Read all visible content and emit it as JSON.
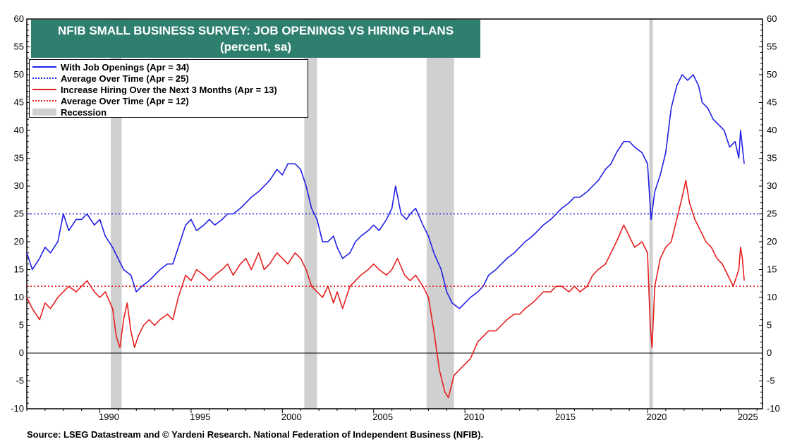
{
  "title": "NFIB SMALL BUSINESS SURVEY: JOB OPENINGS VS HIRING PLANS",
  "subtitle": "(percent, sa)",
  "source": "Source: LSEG Datastream and © Yardeni Research. National Federation of Independent Business (NFIB).",
  "legend": [
    {
      "label": "With Job Openings  (Apr = 34)",
      "style": "solid",
      "color": "#1f1fe6"
    },
    {
      "label": "Average Over Time (Apr = 25)",
      "style": "dotted",
      "color": "#1f1fe6"
    },
    {
      "label": "Increase Hiring Over the Next 3 Months (Apr = 13)",
      "style": "solid",
      "color": "#e61e1e"
    },
    {
      "label": "Average Over Time (Apr = 12)",
      "style": "dotted",
      "color": "#e61e1e"
    },
    {
      "label": "Recession",
      "style": "band",
      "color": "#d0d0d0"
    }
  ],
  "chart_data": {
    "type": "line",
    "xlim": [
      1986.0,
      2026.3
    ],
    "ylim": [
      -10,
      60
    ],
    "x_ticks": [
      "1990",
      "1995",
      "2000",
      "2005",
      "2010",
      "2015",
      "2020",
      "2025"
    ],
    "y_ticks": [
      "-10",
      "-5",
      "0",
      "5",
      "10",
      "15",
      "20",
      "25",
      "30",
      "35",
      "40",
      "45",
      "50",
      "55",
      "60"
    ],
    "grid": false,
    "legend_position": "top-left",
    "zero_line": true,
    "recessions": [
      [
        1990.6,
        1991.2
      ],
      [
        2001.2,
        2001.9
      ],
      [
        2007.9,
        2009.4
      ],
      [
        2020.1,
        2020.3
      ]
    ],
    "series": [
      {
        "name": "With Job Openings",
        "color": "#1f1fe6",
        "points": [
          [
            1986.0,
            18
          ],
          [
            1986.3,
            15
          ],
          [
            1986.7,
            17
          ],
          [
            1987.0,
            19
          ],
          [
            1987.3,
            18
          ],
          [
            1987.7,
            20
          ],
          [
            1988.0,
            25
          ],
          [
            1988.3,
            22
          ],
          [
            1988.7,
            24
          ],
          [
            1989.0,
            24
          ],
          [
            1989.3,
            25
          ],
          [
            1989.7,
            23
          ],
          [
            1990.0,
            24
          ],
          [
            1990.3,
            21
          ],
          [
            1990.7,
            19
          ],
          [
            1991.0,
            17
          ],
          [
            1991.3,
            15
          ],
          [
            1991.7,
            14
          ],
          [
            1992.0,
            11
          ],
          [
            1992.3,
            12
          ],
          [
            1992.7,
            13
          ],
          [
            1993.0,
            14
          ],
          [
            1993.3,
            15
          ],
          [
            1993.7,
            16
          ],
          [
            1994.0,
            16
          ],
          [
            1994.3,
            19
          ],
          [
            1994.7,
            23
          ],
          [
            1995.0,
            24
          ],
          [
            1995.3,
            22
          ],
          [
            1995.7,
            23
          ],
          [
            1996.0,
            24
          ],
          [
            1996.3,
            23
          ],
          [
            1996.7,
            24
          ],
          [
            1997.0,
            25
          ],
          [
            1997.3,
            25
          ],
          [
            1997.7,
            26
          ],
          [
            1998.0,
            27
          ],
          [
            1998.3,
            28
          ],
          [
            1998.7,
            29
          ],
          [
            1999.0,
            30
          ],
          [
            1999.3,
            31
          ],
          [
            1999.7,
            33
          ],
          [
            2000.0,
            32
          ],
          [
            2000.3,
            34
          ],
          [
            2000.7,
            34
          ],
          [
            2001.0,
            33
          ],
          [
            2001.3,
            30
          ],
          [
            2001.6,
            26
          ],
          [
            2001.9,
            24
          ],
          [
            2002.2,
            20
          ],
          [
            2002.5,
            20
          ],
          [
            2002.8,
            21
          ],
          [
            2003.0,
            19
          ],
          [
            2003.3,
            17
          ],
          [
            2003.7,
            18
          ],
          [
            2004.0,
            20
          ],
          [
            2004.3,
            21
          ],
          [
            2004.7,
            22
          ],
          [
            2005.0,
            23
          ],
          [
            2005.3,
            22
          ],
          [
            2005.7,
            24
          ],
          [
            2006.0,
            26
          ],
          [
            2006.2,
            30
          ],
          [
            2006.5,
            25
          ],
          [
            2006.8,
            24
          ],
          [
            2007.0,
            25
          ],
          [
            2007.3,
            26
          ],
          [
            2007.7,
            23
          ],
          [
            2008.0,
            21
          ],
          [
            2008.3,
            18
          ],
          [
            2008.7,
            15
          ],
          [
            2009.0,
            11
          ],
          [
            2009.3,
            9
          ],
          [
            2009.7,
            8
          ],
          [
            2010.0,
            9
          ],
          [
            2010.3,
            10
          ],
          [
            2010.7,
            11
          ],
          [
            2011.0,
            12
          ],
          [
            2011.3,
            14
          ],
          [
            2011.7,
            15
          ],
          [
            2012.0,
            16
          ],
          [
            2012.3,
            17
          ],
          [
            2012.7,
            18
          ],
          [
            2013.0,
            19
          ],
          [
            2013.3,
            20
          ],
          [
            2013.7,
            21
          ],
          [
            2014.0,
            22
          ],
          [
            2014.3,
            23
          ],
          [
            2014.7,
            24
          ],
          [
            2015.0,
            25
          ],
          [
            2015.3,
            26
          ],
          [
            2015.7,
            27
          ],
          [
            2016.0,
            28
          ],
          [
            2016.3,
            28
          ],
          [
            2016.7,
            29
          ],
          [
            2017.0,
            30
          ],
          [
            2017.3,
            31
          ],
          [
            2017.7,
            33
          ],
          [
            2018.0,
            34
          ],
          [
            2018.3,
            36
          ],
          [
            2018.7,
            38
          ],
          [
            2019.0,
            38
          ],
          [
            2019.3,
            37
          ],
          [
            2019.7,
            36
          ],
          [
            2020.0,
            34
          ],
          [
            2020.2,
            24
          ],
          [
            2020.4,
            29
          ],
          [
            2020.7,
            32
          ],
          [
            2021.0,
            36
          ],
          [
            2021.3,
            44
          ],
          [
            2021.6,
            48
          ],
          [
            2021.9,
            50
          ],
          [
            2022.2,
            49
          ],
          [
            2022.5,
            50
          ],
          [
            2022.8,
            48
          ],
          [
            2023.0,
            45
          ],
          [
            2023.3,
            44
          ],
          [
            2023.6,
            42
          ],
          [
            2023.9,
            41
          ],
          [
            2024.2,
            40
          ],
          [
            2024.5,
            37
          ],
          [
            2024.8,
            38
          ],
          [
            2025.0,
            35
          ],
          [
            2025.1,
            40
          ],
          [
            2025.3,
            34
          ]
        ]
      },
      {
        "name": "Average Over Time",
        "color": "#1f1fe6",
        "dotted": true,
        "points": [
          [
            1986.0,
            25
          ],
          [
            2026.2,
            25
          ]
        ]
      },
      {
        "name": "Increase Hiring Over the Next 3 Months",
        "color": "#e61e1e",
        "points": [
          [
            1986.0,
            10
          ],
          [
            1986.3,
            8
          ],
          [
            1986.7,
            6
          ],
          [
            1987.0,
            9
          ],
          [
            1987.3,
            8
          ],
          [
            1987.7,
            10
          ],
          [
            1988.0,
            11
          ],
          [
            1988.3,
            12
          ],
          [
            1988.7,
            11
          ],
          [
            1989.0,
            12
          ],
          [
            1989.3,
            13
          ],
          [
            1989.7,
            11
          ],
          [
            1990.0,
            10
          ],
          [
            1990.3,
            11
          ],
          [
            1990.7,
            8
          ],
          [
            1990.9,
            3
          ],
          [
            1991.1,
            1
          ],
          [
            1991.3,
            6
          ],
          [
            1991.5,
            9
          ],
          [
            1991.7,
            4
          ],
          [
            1991.9,
            1
          ],
          [
            1992.1,
            3
          ],
          [
            1992.4,
            5
          ],
          [
            1992.7,
            6
          ],
          [
            1993.0,
            5
          ],
          [
            1993.3,
            6
          ],
          [
            1993.7,
            7
          ],
          [
            1994.0,
            6
          ],
          [
            1994.3,
            10
          ],
          [
            1994.7,
            14
          ],
          [
            1995.0,
            13
          ],
          [
            1995.3,
            15
          ],
          [
            1995.7,
            14
          ],
          [
            1996.0,
            13
          ],
          [
            1996.3,
            14
          ],
          [
            1996.7,
            15
          ],
          [
            1997.0,
            16
          ],
          [
            1997.3,
            14
          ],
          [
            1997.7,
            16
          ],
          [
            1998.0,
            17
          ],
          [
            1998.3,
            15
          ],
          [
            1998.7,
            18
          ],
          [
            1999.0,
            15
          ],
          [
            1999.3,
            16
          ],
          [
            1999.7,
            18
          ],
          [
            2000.0,
            17
          ],
          [
            2000.3,
            16
          ],
          [
            2000.7,
            18
          ],
          [
            2001.0,
            17
          ],
          [
            2001.3,
            15
          ],
          [
            2001.6,
            12
          ],
          [
            2001.9,
            11
          ],
          [
            2002.2,
            10
          ],
          [
            2002.5,
            12
          ],
          [
            2002.8,
            9
          ],
          [
            2003.0,
            11
          ],
          [
            2003.3,
            8
          ],
          [
            2003.7,
            12
          ],
          [
            2004.0,
            13
          ],
          [
            2004.3,
            14
          ],
          [
            2004.7,
            15
          ],
          [
            2005.0,
            16
          ],
          [
            2005.3,
            15
          ],
          [
            2005.7,
            14
          ],
          [
            2006.0,
            15
          ],
          [
            2006.3,
            17
          ],
          [
            2006.7,
            14
          ],
          [
            2007.0,
            13
          ],
          [
            2007.3,
            14
          ],
          [
            2007.7,
            12
          ],
          [
            2008.0,
            10
          ],
          [
            2008.3,
            4
          ],
          [
            2008.6,
            -3
          ],
          [
            2008.9,
            -7
          ],
          [
            2009.1,
            -8
          ],
          [
            2009.4,
            -4
          ],
          [
            2009.7,
            -3
          ],
          [
            2010.0,
            -2
          ],
          [
            2010.3,
            -1
          ],
          [
            2010.7,
            2
          ],
          [
            2011.0,
            3
          ],
          [
            2011.3,
            4
          ],
          [
            2011.7,
            4
          ],
          [
            2012.0,
            5
          ],
          [
            2012.3,
            6
          ],
          [
            2012.7,
            7
          ],
          [
            2013.0,
            7
          ],
          [
            2013.3,
            8
          ],
          [
            2013.7,
            9
          ],
          [
            2014.0,
            10
          ],
          [
            2014.3,
            11
          ],
          [
            2014.7,
            11
          ],
          [
            2015.0,
            12
          ],
          [
            2015.3,
            12
          ],
          [
            2015.7,
            11
          ],
          [
            2016.0,
            12
          ],
          [
            2016.3,
            11
          ],
          [
            2016.7,
            12
          ],
          [
            2017.0,
            14
          ],
          [
            2017.3,
            15
          ],
          [
            2017.7,
            16
          ],
          [
            2018.0,
            18
          ],
          [
            2018.3,
            20
          ],
          [
            2018.7,
            23
          ],
          [
            2019.0,
            21
          ],
          [
            2019.3,
            19
          ],
          [
            2019.7,
            20
          ],
          [
            2020.0,
            18
          ],
          [
            2020.15,
            5
          ],
          [
            2020.25,
            1
          ],
          [
            2020.4,
            12
          ],
          [
            2020.7,
            17
          ],
          [
            2021.0,
            19
          ],
          [
            2021.3,
            20
          ],
          [
            2021.6,
            24
          ],
          [
            2021.9,
            28
          ],
          [
            2022.1,
            31
          ],
          [
            2022.3,
            27
          ],
          [
            2022.6,
            24
          ],
          [
            2022.9,
            22
          ],
          [
            2023.2,
            20
          ],
          [
            2023.5,
            19
          ],
          [
            2023.8,
            17
          ],
          [
            2024.1,
            16
          ],
          [
            2024.4,
            14
          ],
          [
            2024.7,
            12
          ],
          [
            2025.0,
            15
          ],
          [
            2025.1,
            19
          ],
          [
            2025.2,
            17
          ],
          [
            2025.3,
            13
          ]
        ]
      },
      {
        "name": "Average Over Time",
        "color": "#e61e1e",
        "dotted": true,
        "points": [
          [
            1986.0,
            12
          ],
          [
            2026.2,
            12
          ]
        ]
      }
    ]
  }
}
